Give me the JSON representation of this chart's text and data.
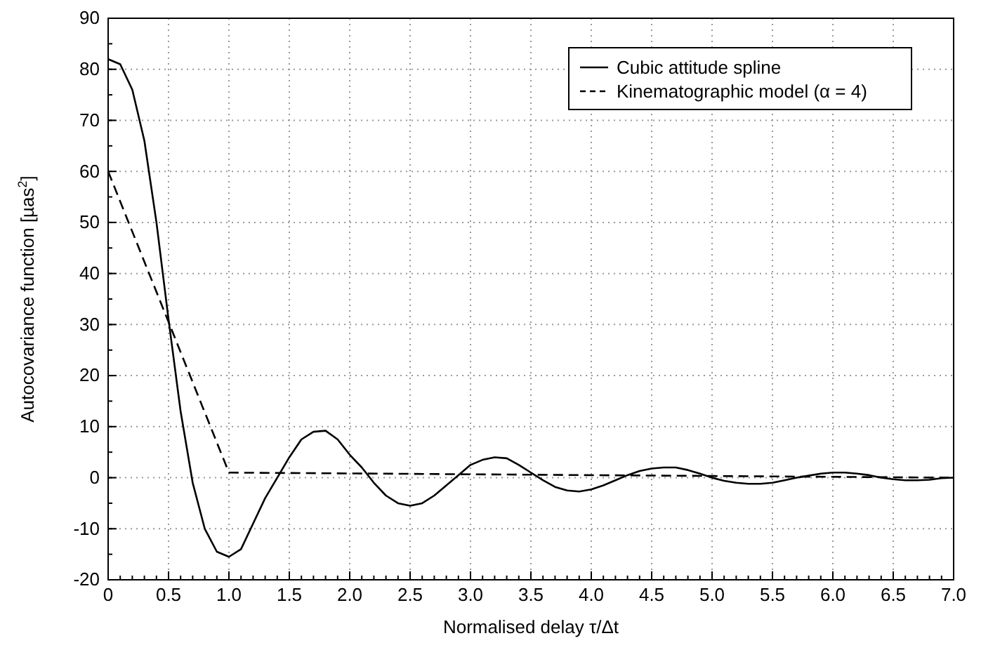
{
  "chart_data": {
    "type": "line",
    "xlabel": "Normalised delay τ/Δt",
    "ylabel": "Autocovariance function [µas$^{2}$]",
    "xlim": [
      0,
      7
    ],
    "xticks": [
      {
        "value": 0,
        "label": "0"
      },
      0.5,
      {
        "value": 1,
        "label": "1.0"
      },
      1.5,
      {
        "value": 2,
        "label": "2.0"
      },
      2.5,
      {
        "value": 3,
        "label": "3.0"
      },
      3.5,
      {
        "value": 4,
        "label": "4.0"
      },
      4.5,
      {
        "value": 5,
        "label": "5.0"
      },
      5.5,
      {
        "value": 6,
        "label": "6.0"
      },
      6.5,
      {
        "value": 7,
        "label": "7.0"
      }
    ],
    "ylim": [
      -20,
      90
    ],
    "yticks": [
      -20,
      -10,
      0,
      10,
      20,
      30,
      40,
      50,
      60,
      70,
      80,
      90
    ],
    "grid": true,
    "legend": "top right",
    "marker": "none",
    "series": [
      {
        "name": "Cubic attitude spline",
        "color": "#000000",
        "line_style": "solid",
        "x": [
          0,
          0.1,
          0.2,
          0.3,
          0.4,
          0.5,
          0.6,
          0.7,
          0.8,
          0.9,
          1.0,
          1.1,
          1.2,
          1.3,
          1.4,
          1.5,
          1.6,
          1.7,
          1.8,
          1.9,
          2.0,
          2.1,
          2.2,
          2.3,
          2.4,
          2.5,
          2.6,
          2.7,
          2.8,
          2.9,
          3.0,
          3.1,
          3.2,
          3.3,
          3.4,
          3.5,
          3.6,
          3.7,
          3.8,
          3.9,
          4.0,
          4.1,
          4.2,
          4.3,
          4.4,
          4.5,
          4.6,
          4.7,
          4.8,
          4.9,
          5.0,
          5.1,
          5.2,
          5.3,
          5.4,
          5.5,
          5.6,
          5.7,
          5.8,
          5.9,
          6.0,
          6.1,
          6.2,
          6.3,
          6.4,
          6.5,
          6.6,
          6.7,
          6.8,
          6.9,
          7.0
        ],
        "values": [
          82,
          81,
          76,
          66,
          50,
          31,
          13,
          -1,
          -10,
          -14.5,
          -15.5,
          -14,
          -9,
          -4,
          0,
          4,
          7.5,
          9,
          9.2,
          7.5,
          4.5,
          2,
          -1,
          -3.5,
          -5,
          -5.5,
          -5,
          -3.5,
          -1.5,
          0.5,
          2.5,
          3.5,
          4,
          3.8,
          2.5,
          1,
          -0.5,
          -1.8,
          -2.5,
          -2.7,
          -2.3,
          -1.5,
          -0.5,
          0.5,
          1.3,
          1.8,
          2,
          2,
          1.5,
          0.8,
          0,
          -0.6,
          -1,
          -1.2,
          -1.2,
          -1,
          -0.5,
          0,
          0.4,
          0.8,
          1,
          1,
          0.8,
          0.5,
          0,
          -0.3,
          -0.5,
          -0.5,
          -0.4,
          -0.1,
          0
        ]
      },
      {
        "name": "Kinematographic model (α = 4)",
        "color": "#000000",
        "line_style": "dashed",
        "x": [
          0,
          1.0,
          7.0
        ],
        "values": [
          60,
          1,
          0
        ]
      }
    ]
  }
}
